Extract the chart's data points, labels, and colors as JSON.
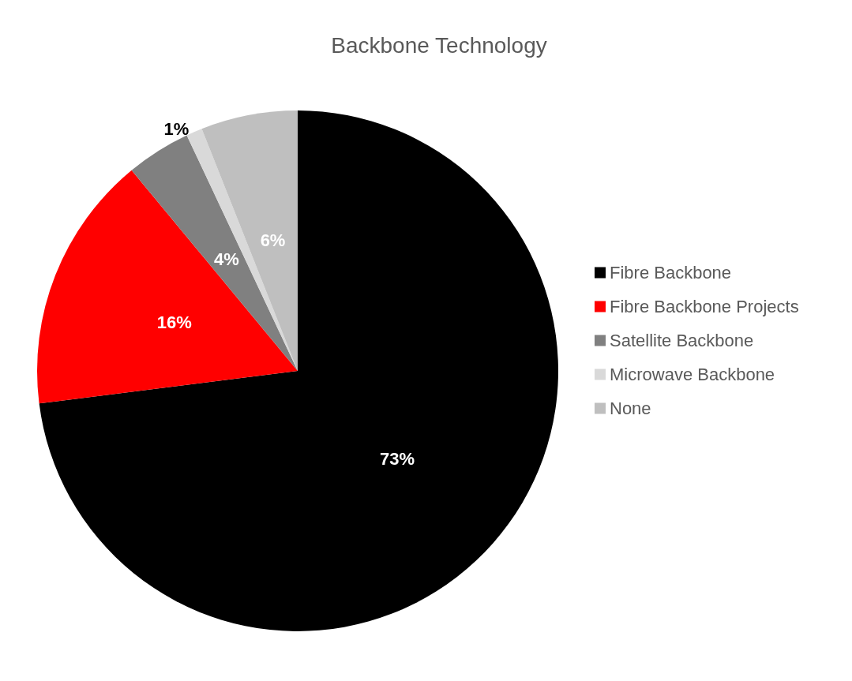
{
  "chart_data": {
    "type": "pie",
    "title": "Backbone Technology",
    "categories": [
      "Fibre Backbone",
      "Fibre Backbone Projects",
      "Satellite Backbone",
      "Microwave Backbone",
      "None"
    ],
    "values": [
      73,
      16,
      4,
      1,
      6
    ],
    "colors": [
      "#000000",
      "#ff0000",
      "#808080",
      "#d9d9d9",
      "#bfbfbf"
    ],
    "value_labels": [
      "73%",
      "16%",
      "4%",
      "1%",
      "6%"
    ],
    "legend": "right"
  }
}
